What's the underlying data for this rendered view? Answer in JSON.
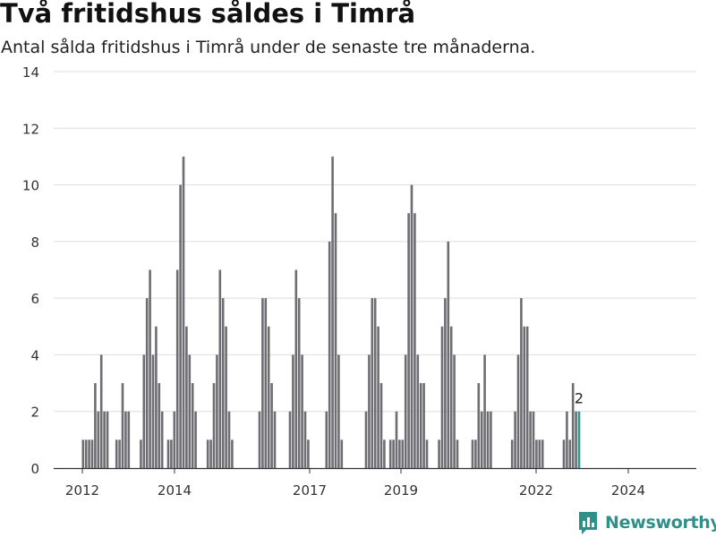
{
  "header": {
    "title": "Två fritidshus såldes i Timrå",
    "subtitle": "Antal sålda fritidshus i Timrå under de senaste tre månaderna."
  },
  "brand": {
    "name": "Newsworthy",
    "icon": "newsworthy-logo-icon"
  },
  "colors": {
    "bar": "#6d6d72",
    "highlight": "#2a9a8e",
    "grid": "#dddddd",
    "axis": "#333333",
    "brand": "#2f8f89"
  },
  "chart_data": {
    "type": "bar",
    "title": "Två fritidshus såldes i Timrå",
    "subtitle": "Antal sålda fritidshus i Timrå under de senaste tre månaderna.",
    "xlabel": "",
    "ylabel": "",
    "ylim": [
      0,
      14
    ],
    "yticks": [
      "0",
      "2",
      "4",
      "6",
      "8",
      "10",
      "12",
      "14"
    ],
    "xticks": [
      "2012",
      "2014",
      "2017",
      "2019",
      "2022",
      "2024"
    ],
    "grid": true,
    "annotation": {
      "label": "2",
      "category": "last"
    },
    "values": [
      1,
      1,
      1,
      1,
      3,
      2,
      4,
      2,
      2,
      0,
      0,
      1,
      1,
      3,
      2,
      2,
      0,
      0,
      0,
      1,
      4,
      6,
      7,
      4,
      5,
      3,
      2,
      0,
      1,
      1,
      2,
      7,
      10,
      11,
      5,
      4,
      3,
      2,
      0,
      0,
      0,
      1,
      1,
      3,
      4,
      7,
      6,
      5,
      2,
      1,
      0,
      0,
      0,
      0,
      0,
      0,
      0,
      0,
      2,
      6,
      6,
      5,
      3,
      2,
      0,
      0,
      0,
      0,
      2,
      4,
      7,
      6,
      4,
      2,
      1,
      0,
      0,
      0,
      0,
      0,
      2,
      8,
      11,
      9,
      4,
      1,
      0,
      0,
      0,
      0,
      0,
      0,
      0,
      2,
      4,
      6,
      6,
      5,
      3,
      1,
      0,
      1,
      1,
      2,
      1,
      1,
      4,
      9,
      10,
      9,
      4,
      3,
      3,
      1,
      0,
      0,
      0,
      1,
      5,
      6,
      8,
      5,
      4,
      1,
      0,
      0,
      0,
      0,
      1,
      1,
      3,
      2,
      4,
      2,
      2,
      0,
      0,
      0,
      0,
      0,
      0,
      1,
      2,
      4,
      6,
      5,
      5,
      2,
      2,
      1,
      1,
      1,
      0,
      0,
      0,
      0,
      0,
      0,
      1,
      2,
      1,
      3,
      2,
      2
    ]
  }
}
